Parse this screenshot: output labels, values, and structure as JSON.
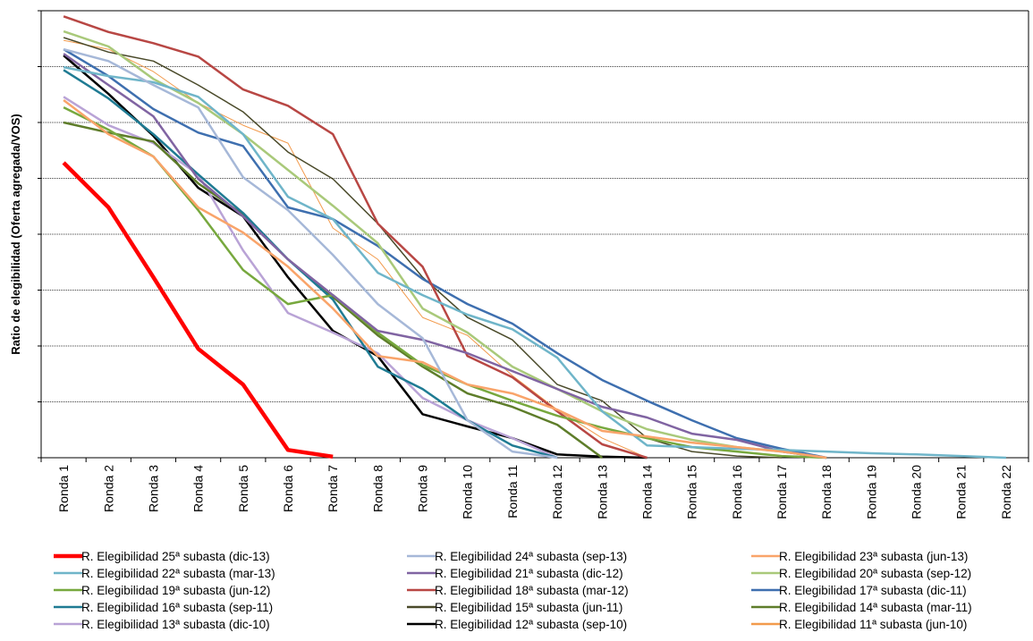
{
  "chart_data": {
    "type": "line",
    "y_label": "Ratio de elegibilidad (Oferta agregada/VOS)",
    "categories": [
      "Ronda 1",
      "Ronda 2",
      "Ronda 3",
      "Ronda 4",
      "Ronda 5",
      "Ronda 6",
      "Ronda 7",
      "Ronda 8",
      "Ronda 9",
      "Ronda 10",
      "Ronda 11",
      "Ronda 12",
      "Ronda 13",
      "Ronda 14",
      "Ronda 15",
      "Ronda 16",
      "Ronda 17",
      "Ronda 18",
      "Ronda 19",
      "Ronda 20",
      "Ronda 21",
      "Ronda 22"
    ],
    "ylim": [
      0,
      8
    ],
    "yticks": [
      0,
      1,
      2,
      3,
      4,
      5,
      6,
      7,
      8
    ],
    "grid": true,
    "series": [
      {
        "name": "R. Elegibilidad 25ª subasta (dic-13)",
        "color": "#ff0000",
        "width": 4.5,
        "values": [
          5.28,
          4.48,
          3.23,
          1.95,
          1.31,
          0.14,
          0.02,
          null,
          null,
          null,
          null,
          null,
          null,
          null,
          null,
          null,
          null,
          null,
          null,
          null,
          null,
          null
        ]
      },
      {
        "name": "R. Elegibilidad 24ª subasta (sep-13)",
        "color": "#a6b8d8",
        "width": 2.5,
        "values": [
          7.31,
          7.1,
          6.67,
          6.27,
          5.02,
          4.43,
          3.63,
          2.75,
          2.14,
          0.67,
          0.11,
          0,
          null,
          null,
          null,
          null,
          null,
          null,
          null,
          null,
          null,
          null
        ]
      },
      {
        "name": "R. Elegibilidad 23ª subasta (jun-13)",
        "color": "#f9a46a",
        "width": 2.5,
        "values": [
          6.4,
          5.79,
          5.39,
          4.48,
          4.03,
          3.42,
          2.67,
          1.82,
          1.71,
          1.31,
          1.15,
          0.86,
          0.48,
          0.38,
          0.27,
          0.19,
          0.11,
          0,
          null,
          null,
          null,
          null
        ]
      },
      {
        "name": "R. Elegibilidad 22ª subasta (mar-13)",
        "color": "#6fb5c9",
        "width": 2.5,
        "values": [
          6.99,
          6.83,
          6.72,
          6.46,
          5.79,
          4.67,
          4.27,
          3.31,
          2.91,
          2.56,
          2.3,
          1.79,
          0.83,
          0.22,
          0.19,
          0.16,
          0.14,
          0.11,
          0.08,
          0.06,
          0.03,
          0
        ]
      },
      {
        "name": "R. Elegibilidad 21ª subasta (dic-12)",
        "color": "#8064a2",
        "width": 2.5,
        "values": [
          7.23,
          6.67,
          6.11,
          4.99,
          4.32,
          3.55,
          2.91,
          2.27,
          2.11,
          1.87,
          1.55,
          1.23,
          0.91,
          0.72,
          0.43,
          0.32,
          0.11,
          0,
          null,
          null,
          null,
          null
        ]
      },
      {
        "name": "R. Elegibilidad 20ª subasta (sep-12)",
        "color": "#a9c97a",
        "width": 2.5,
        "values": [
          7.63,
          7.36,
          6.78,
          6.35,
          5.79,
          5.15,
          4.51,
          3.84,
          2.67,
          2.24,
          1.63,
          1.23,
          0.83,
          0.51,
          0.32,
          0.19,
          0.11,
          0,
          null,
          null,
          null,
          null
        ]
      },
      {
        "name": "R. Elegibilidad 19ª subasta (jun-12)",
        "color": "#77a83e",
        "width": 2.5,
        "values": [
          6.27,
          5.87,
          5.39,
          4.43,
          3.36,
          2.75,
          2.91,
          2.24,
          1.66,
          1.31,
          1.02,
          0.75,
          0.54,
          0.35,
          0.19,
          0.11,
          0.03,
          0,
          null,
          null,
          null,
          null
        ]
      },
      {
        "name": "R. Elegibilidad 18ª subasta (mar-12)",
        "color": "#b84744",
        "width": 2.5,
        "values": [
          7.9,
          7.62,
          7.42,
          7.18,
          6.59,
          6.3,
          5.79,
          4.19,
          3.42,
          1.82,
          1.44,
          0.83,
          0.24,
          0,
          null,
          null,
          null,
          null,
          null,
          null,
          null,
          null
        ]
      },
      {
        "name": "R. Elegibilidad 17ª subasta (dic-11)",
        "color": "#3e6faf",
        "width": 2.5,
        "values": [
          7.31,
          6.83,
          6.24,
          5.82,
          5.58,
          4.48,
          4.27,
          3.79,
          3.2,
          2.75,
          2.4,
          1.87,
          1.39,
          1.02,
          0.67,
          0.35,
          0.16,
          0,
          null,
          null,
          null,
          null
        ]
      },
      {
        "name": "R. Elegibilidad 16ª subasta (sep-11)",
        "color": "#1f7b93",
        "width": 2.5,
        "values": [
          6.94,
          6.43,
          5.79,
          5.07,
          4.38,
          3.55,
          2.83,
          1.63,
          1.23,
          0.67,
          0.22,
          0,
          null,
          null,
          null,
          null,
          null,
          null,
          null,
          null,
          null,
          null
        ]
      },
      {
        "name": "R. Elegibilidad 15ª subasta (jun-11)",
        "color": "#4a4a2a",
        "width": 1.5,
        "values": [
          7.52,
          7.26,
          7.1,
          6.67,
          6.19,
          5.47,
          4.99,
          4.19,
          3.23,
          2.51,
          2.11,
          1.31,
          1.02,
          0.35,
          0.11,
          0.03,
          0,
          null,
          null,
          null,
          null,
          null
        ]
      },
      {
        "name": "R. Elegibilidad 14ª subasta (mar-11)",
        "color": "#5e7d2a",
        "width": 2.5,
        "values": [
          6.0,
          5.82,
          5.66,
          4.91,
          4.35,
          3.55,
          2.88,
          2.19,
          1.63,
          1.15,
          0.91,
          0.59,
          0,
          null,
          null,
          null,
          null,
          null,
          null,
          null,
          null,
          null
        ]
      },
      {
        "name": "R. Elegibilidad 13ª subasta (dic-10)",
        "color": "#b9a3d6",
        "width": 2.5,
        "values": [
          6.46,
          5.95,
          5.63,
          5.07,
          3.71,
          2.59,
          2.24,
          1.87,
          1.07,
          0.67,
          0.35,
          0,
          null,
          null,
          null,
          null,
          null,
          null,
          null,
          null,
          null,
          null
        ]
      },
      {
        "name": "R. Elegibilidad 12ª subasta (sep-10)",
        "color": "#000000",
        "width": 2.5,
        "values": [
          7.2,
          6.51,
          5.76,
          4.83,
          4.32,
          3.23,
          2.27,
          1.82,
          0.78,
          0.56,
          0.35,
          0.06,
          0.02,
          0,
          null,
          null,
          null,
          null,
          null,
          null,
          null,
          null
        ]
      },
      {
        "name": "R. Elegibilidad 11ª subasta (jun-10)",
        "color": "#f29a4c",
        "width": 1,
        "values": [
          7.47,
          7.31,
          6.91,
          6.35,
          5.95,
          5.63,
          4.11,
          3.55,
          2.51,
          2.19,
          1.47,
          0.86,
          0.35,
          0,
          null,
          null,
          null,
          null,
          null,
          null,
          null,
          null
        ]
      }
    ]
  }
}
